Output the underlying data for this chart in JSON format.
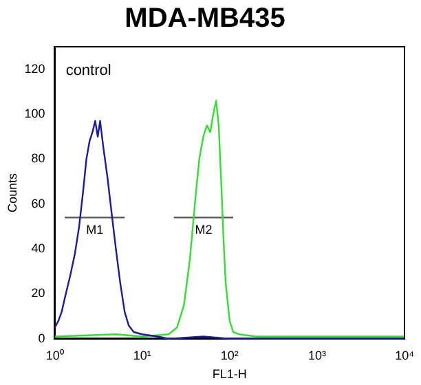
{
  "chart_data": {
    "type": "line",
    "title": "MDA-MB435",
    "xlabel": "FL1-H",
    "ylabel": "Counts",
    "log": "x",
    "xlim": [
      1,
      10000
    ],
    "ylim": [
      0,
      130
    ],
    "xticks": [
      {
        "value": 1,
        "label": "10⁰"
      },
      {
        "value": 10,
        "label": "10¹"
      },
      {
        "value": 100,
        "label": "10²"
      },
      {
        "value": 1000,
        "label": "10³"
      },
      {
        "value": 10000,
        "label": "10⁴"
      }
    ],
    "yticks": [
      0,
      20,
      40,
      60,
      80,
      100,
      120
    ],
    "grid": false,
    "legend": false,
    "marker": "none",
    "line_style": "solid",
    "series": [
      {
        "color": "#1a1a9c",
        "x": [
          1,
          1.1,
          1.2,
          1.3,
          1.5,
          1.7,
          1.9,
          2.1,
          2.3,
          2.5,
          2.7,
          2.9,
          3.1,
          3.3,
          3.6,
          4,
          4.5,
          5,
          5.6,
          6.3,
          7,
          8,
          10,
          15,
          20,
          50,
          100,
          1000,
          10000
        ],
        "values": [
          5,
          8,
          12,
          18,
          28,
          38,
          50,
          65,
          80,
          88,
          92,
          97,
          90,
          97,
          85,
          72,
          55,
          40,
          25,
          12,
          6,
          3,
          2,
          1,
          0,
          1,
          0,
          0,
          0
        ]
      },
      {
        "color": "#33dd33",
        "x": [
          1,
          5,
          10,
          20,
          25,
          30,
          35,
          40,
          45,
          50,
          55,
          60,
          65,
          70,
          75,
          80,
          85,
          90,
          100,
          110,
          130,
          200,
          500,
          10000
        ],
        "values": [
          1,
          2,
          1,
          2,
          5,
          15,
          35,
          60,
          80,
          90,
          95,
          92,
          100,
          106,
          95,
          70,
          45,
          25,
          8,
          3,
          2,
          1,
          1,
          1
        ]
      },
      {
        "name": "M1",
        "color": "#555555",
        "x": [
          1.3,
          6.3
        ],
        "values": [
          54,
          54
        ]
      },
      {
        "name": "M2",
        "color": "#555555",
        "x": [
          23,
          110
        ],
        "values": [
          54,
          54
        ]
      }
    ],
    "annotations": [
      "control"
    ]
  }
}
